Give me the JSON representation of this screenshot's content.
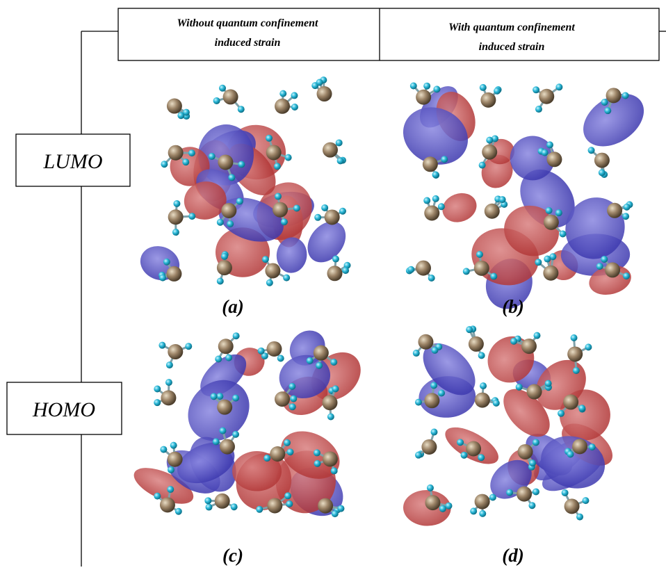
{
  "columns": [
    {
      "lines": [
        "Without  quantum confinement",
        "induced strain"
      ]
    },
    {
      "lines": [
        "With quantum confinement",
        "induced strain"
      ]
    }
  ],
  "rows": [
    "LUMO",
    "HOMO"
  ],
  "panels": [
    "(a)",
    "(b)",
    "(c)",
    "(d)"
  ]
}
